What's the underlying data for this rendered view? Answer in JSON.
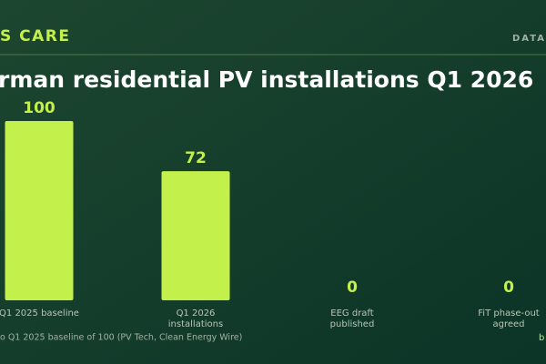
{
  "header": {
    "brand": "S CARE",
    "section": "DATA"
  },
  "chart_data": {
    "type": "bar",
    "title": "rman residential PV installations Q1 2026",
    "categories": [
      [
        "Q1 2025 baseline"
      ],
      [
        "Q1 2026",
        "installations"
      ],
      [
        "EEG draft",
        "published"
      ],
      [
        "FiT phase-out",
        "agreed"
      ]
    ],
    "values": [
      100,
      72,
      0,
      0
    ],
    "color": "#c3f04a",
    "note": "o Q1 2025 baseline of 100 (PV Tech, Clean Energy Wire)"
  },
  "footer": {
    "tag": "b"
  }
}
